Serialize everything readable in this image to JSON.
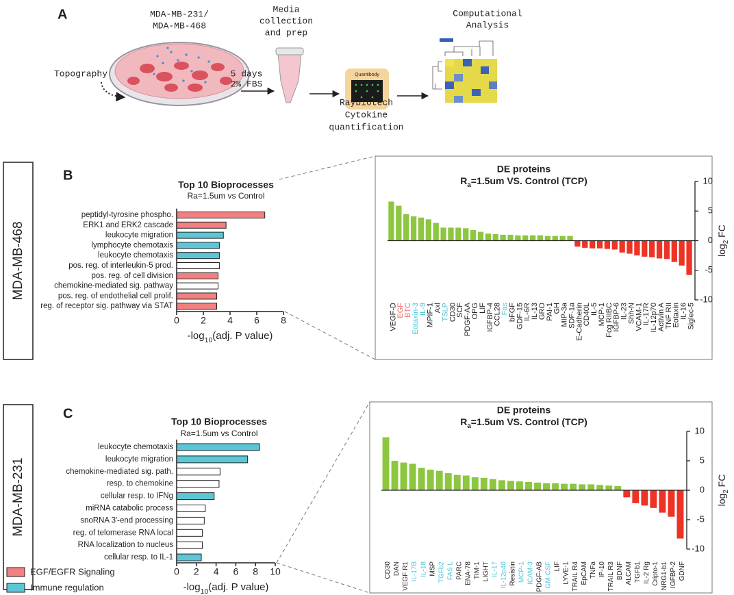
{
  "panels": [
    "A",
    "B",
    "C"
  ],
  "workflow": {
    "cell_lines": [
      "MDA-MB-231/",
      "MDA-MB-468"
    ],
    "topography": "Topography",
    "culture": [
      "5 days",
      "2% FBS"
    ],
    "media": [
      "Media",
      "collection",
      "and prep"
    ],
    "kit": "Quantibody",
    "assay": [
      "Raybiotech",
      "Cytokine",
      "quantification"
    ],
    "analysis": [
      "Computational",
      "Analysis"
    ]
  },
  "row_labels": [
    "MDA-MB-468",
    "MDA-MB-231"
  ],
  "legend": [
    {
      "name": "EGF/EGFR Signaling",
      "color": "#f28080"
    },
    {
      "name": "Immune regulation",
      "color": "#5bc7d6"
    }
  ],
  "chart_data": [
    {
      "type": "barh",
      "title": "Top 10 Bioprocesses",
      "subtitle": "Ra=1.5um vs Control",
      "categories": [
        "peptidyl-tyrosine phospho.",
        "ERK1 and ERK2 cascade",
        "leukocyte migration",
        "lymphocyte chemotaxis",
        "leukocyte chemotaxis",
        "pos. reg. of interleukin-5 prod.",
        "pos. reg. of cell division",
        "chemokine-mediated sig. pathway",
        "pos. reg. of endothelial cell prolif.",
        "reg. of receptor sig. pathway via STAT"
      ],
      "values": [
        6.6,
        3.7,
        3.5,
        3.2,
        3.2,
        3.2,
        3.1,
        3.1,
        3.0,
        3.0
      ],
      "colors": [
        "#f28080",
        "#f28080",
        "#5bc7d6",
        "#5bc7d6",
        "#5bc7d6",
        "#ffffff",
        "#f28080",
        "#ffffff",
        "#f28080",
        "#f28080"
      ],
      "xlabel": [
        "-log",
        "10",
        "(adj. P value)"
      ],
      "xlim": [
        0,
        8
      ],
      "xticks": [
        0,
        2,
        4,
        6,
        8
      ]
    },
    {
      "type": "bar",
      "title": "DE proteins",
      "subtitle": [
        "R",
        "a",
        "=1.5um VS. Control (TCP)"
      ],
      "categories": [
        "VEGF-D",
        "EGF",
        "BTC",
        "Eotaxin-3",
        "IL-9",
        "MPIF-1",
        "Axl",
        "TSLP",
        "CD30",
        "SCF",
        "PDGF-AA",
        "OPG",
        "LIF",
        "IGFBP-4",
        "CCL28",
        "Fas",
        "bFGF",
        "GDF-15",
        "IL-6R",
        "IL-13",
        "GRO",
        "PAI-1",
        "GH",
        "MIP-3a",
        "SDF-1a",
        "E-Cadherin",
        "CD40L",
        "IL-5",
        "MCP-1",
        "Fcg RIIBC",
        "IGFBP-6",
        "IL-23",
        "Shh-N",
        "VCAM-1",
        "IL-17R",
        "IL-12p70",
        "Activin A",
        "TNF RII",
        "Eotaxin",
        "IL-16",
        "Siglec-5"
      ],
      "values": [
        6.6,
        5.9,
        4.5,
        4.1,
        3.9,
        3.6,
        3.0,
        2.2,
        2.2,
        2.2,
        2.1,
        1.8,
        1.5,
        1.2,
        1.1,
        1.0,
        1.0,
        0.9,
        0.9,
        0.9,
        0.9,
        0.8,
        0.8,
        0.8,
        0.8,
        -1.0,
        -1.2,
        -1.3,
        -1.3,
        -1.4,
        -1.5,
        -2.0,
        -2.2,
        -2.5,
        -2.7,
        -2.8,
        -3.0,
        -3.1,
        -3.6,
        -4.2,
        -5.8
      ],
      "label_colors": [
        "#231f20",
        "#f26b6b",
        "#f26b6b",
        "#4fc3d9",
        "#4fc3d9",
        "#231f20",
        "#231f20",
        "#4fc3d9",
        "#231f20",
        "#231f20",
        "#231f20",
        "#231f20",
        "#231f20",
        "#231f20",
        "#231f20",
        "#4fc3d9",
        "#231f20",
        "#231f20",
        "#231f20",
        "#231f20",
        "#231f20",
        "#231f20",
        "#231f20",
        "#231f20",
        "#231f20",
        "#231f20",
        "#231f20",
        "#231f20",
        "#231f20",
        "#231f20",
        "#231f20",
        "#231f20",
        "#231f20",
        "#231f20",
        "#231f20",
        "#231f20",
        "#231f20",
        "#231f20",
        "#231f20",
        "#231f20",
        "#231f20"
      ],
      "pos_color": "#8dc63f",
      "neg_color": "#ee3224",
      "ylabel": [
        "log",
        "2",
        " FC"
      ],
      "ylim": [
        -10,
        10
      ],
      "yticks": [
        -10,
        -5,
        0,
        5,
        10
      ]
    },
    {
      "type": "barh",
      "title": "Top 10 Bioprocesses",
      "subtitle": "Ra=1.5um vs Control",
      "categories": [
        "leukocyte chemotaxis",
        "leukocyte migration",
        "chemokine-mediated sig. path.",
        "resp. to chemokine",
        "cellular resp. to IFNg",
        "miRNA catabolic process",
        "snoRNA 3'-end processing",
        "reg. of telomerase RNA local",
        "RNA localization to nucleus",
        "cellular resp. to IL-1"
      ],
      "values": [
        8.4,
        7.2,
        4.4,
        4.3,
        3.8,
        2.9,
        2.8,
        2.6,
        2.6,
        2.5
      ],
      "colors": [
        "#5bc7d6",
        "#5bc7d6",
        "#ffffff",
        "#ffffff",
        "#5bc7d6",
        "#ffffff",
        "#ffffff",
        "#ffffff",
        "#ffffff",
        "#5bc7d6"
      ],
      "xlabel": [
        "-log",
        "10",
        "(adj. P value)"
      ],
      "xlim": [
        0,
        10
      ],
      "xticks": [
        0,
        2,
        4,
        6,
        8,
        10
      ]
    },
    {
      "type": "bar",
      "title": "DE proteins",
      "subtitle": [
        "R",
        "a",
        "=1.5um VS. Control (TCP)"
      ],
      "categories": [
        "CD30",
        "DAN",
        "VEGF R1",
        "IL-17B",
        "IL-18",
        "MSP",
        "TGFb2",
        "FAS L",
        "PARC",
        "ENA-78",
        "TIM-1",
        "LIGHT",
        "IL-17",
        "IL-12p40",
        "Resistin",
        "MCP-1",
        "ICAM-3",
        "PDGF-AB",
        "GM-CSF",
        "LIF",
        "LYVE-1",
        "TRAIL R4",
        "EpCAM",
        "TNFa",
        "IP-10",
        "TRAIL R3",
        "BDNF",
        "ALCAM",
        "TGFb1",
        "IL-2 Rg",
        "Cripto-1",
        "NRG1-b1",
        "IGFBP-2",
        "GDNF"
      ],
      "values": [
        9.0,
        5.0,
        4.7,
        4.5,
        3.8,
        3.5,
        3.3,
        2.9,
        2.6,
        2.5,
        2.2,
        2.1,
        1.9,
        1.7,
        1.6,
        1.5,
        1.4,
        1.3,
        1.2,
        1.2,
        1.1,
        1.1,
        1.0,
        1.0,
        0.9,
        0.8,
        0.7,
        -1.2,
        -2.2,
        -2.6,
        -3.0,
        -3.8,
        -4.5,
        -8.2
      ],
      "label_colors": [
        "#231f20",
        "#231f20",
        "#231f20",
        "#4fc3d9",
        "#4fc3d9",
        "#231f20",
        "#4fc3d9",
        "#4fc3d9",
        "#231f20",
        "#231f20",
        "#231f20",
        "#231f20",
        "#4fc3d9",
        "#4fc3d9",
        "#231f20",
        "#4fc3d9",
        "#4fc3d9",
        "#231f20",
        "#4fc3d9",
        "#231f20",
        "#231f20",
        "#231f20",
        "#231f20",
        "#231f20",
        "#231f20",
        "#231f20",
        "#231f20",
        "#231f20",
        "#231f20",
        "#231f20",
        "#231f20",
        "#231f20",
        "#231f20",
        "#231f20"
      ],
      "pos_color": "#8dc63f",
      "neg_color": "#ee3224",
      "ylabel": [
        "log",
        "2",
        " FC"
      ],
      "ylim": [
        -10,
        10
      ],
      "yticks": [
        -10,
        -5,
        0,
        5,
        10
      ]
    }
  ]
}
